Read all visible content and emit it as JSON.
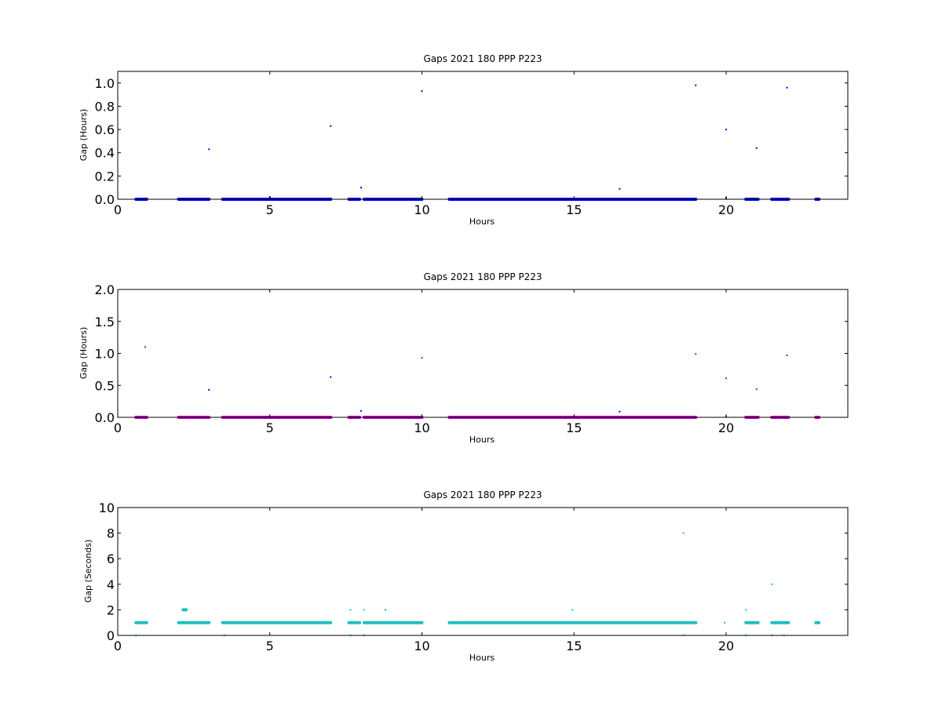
{
  "chart_data": [
    {
      "type": "scatter",
      "title": "Gaps 2021 180 PPP  P223",
      "xlabel": "Hours",
      "ylabel": "Gap (Hours)",
      "xlim": [
        0,
        24
      ],
      "ylim": [
        0,
        1.1
      ],
      "xticks": [
        "0",
        "5",
        "10",
        "15",
        "20"
      ],
      "yticks": [
        "0.0",
        "0.2",
        "0.4",
        "0.6",
        "0.8",
        "1.0"
      ],
      "grid": false,
      "series": [
        {
          "color": "#0000ff",
          "segments": [
            [
              0.6,
              0.95,
              0.0
            ],
            [
              2.0,
              3.0,
              0.0
            ],
            [
              3.45,
              7.0,
              0.0
            ],
            [
              7.6,
              7.95,
              0.0
            ],
            [
              8.1,
              10.0,
              0.0
            ],
            [
              10.9,
              19.0,
              0.0
            ],
            [
              20.65,
              21.05,
              0.0
            ],
            [
              21.5,
              22.05,
              0.0
            ],
            [
              22.95,
              23.05,
              0.0
            ]
          ],
          "points": [
            [
              3.0,
              0.43
            ],
            [
              5.0,
              0.02
            ],
            [
              7.0,
              0.63
            ],
            [
              8.0,
              0.1
            ],
            [
              10.0,
              0.93
            ],
            [
              16.5,
              0.09
            ],
            [
              19.0,
              0.98
            ],
            [
              20.0,
              0.6
            ],
            [
              20.0,
              0.01
            ],
            [
              21.0,
              0.44
            ],
            [
              22.0,
              0.96
            ]
          ]
        }
      ]
    },
    {
      "type": "scatter",
      "title": "Gaps 2021 180 PPP  P223",
      "xlabel": "Hours",
      "ylabel": "Gap (Hours)",
      "xlim": [
        0,
        24
      ],
      "ylim": [
        0,
        2.0
      ],
      "xticks": [
        "0",
        "5",
        "10",
        "15",
        "20"
      ],
      "yticks": [
        "0.0",
        "0.5",
        "1.0",
        "1.5",
        "2.0"
      ],
      "grid": false,
      "series": [
        {
          "color": "#0000ff",
          "segments": [],
          "points": [
            [
              3.0,
              0.43
            ],
            [
              7.0,
              0.63
            ],
            [
              8.0,
              0.1
            ],
            [
              16.5,
              0.09
            ]
          ]
        },
        {
          "color": "#bf00bf",
          "segments": [
            [
              0.6,
              0.95,
              0.0
            ],
            [
              2.0,
              3.0,
              0.0
            ],
            [
              3.45,
              7.0,
              0.0
            ],
            [
              7.6,
              7.95,
              0.0
            ],
            [
              8.1,
              10.0,
              0.0
            ],
            [
              10.9,
              19.0,
              0.0
            ],
            [
              20.65,
              21.05,
              0.0
            ],
            [
              21.5,
              22.05,
              0.0
            ],
            [
              22.95,
              23.05,
              0.0
            ]
          ],
          "points": [
            [
              0.9,
              1.1
            ],
            [
              10.0,
              0.93
            ],
            [
              19.0,
              0.99
            ],
            [
              20.0,
              0.61
            ],
            [
              21.0,
              0.44
            ],
            [
              22.0,
              0.97
            ],
            [
              20.0,
              0.01
            ]
          ]
        }
      ]
    },
    {
      "type": "scatter",
      "title": "Gaps 2021 180 PPP  P223",
      "xlabel": "Hours",
      "ylabel": "Gap (Seconds)",
      "xlim": [
        0,
        24
      ],
      "ylim": [
        0,
        10
      ],
      "xticks": [
        "0",
        "5",
        "10",
        "15",
        "20"
      ],
      "yticks": [
        "0",
        "2",
        "4",
        "6",
        "8",
        "10"
      ],
      "grid": false,
      "series": [
        {
          "color": "#1fbfbf",
          "segments": [
            [
              0.6,
              0.95,
              1.0
            ],
            [
              2.0,
              3.0,
              1.0
            ],
            [
              2.15,
              2.25,
              2.0
            ],
            [
              3.45,
              7.0,
              1.0
            ],
            [
              7.6,
              7.95,
              1.0
            ],
            [
              8.1,
              10.0,
              1.0
            ],
            [
              10.9,
              19.0,
              1.0
            ],
            [
              20.65,
              21.05,
              1.0
            ],
            [
              21.5,
              22.05,
              1.0
            ],
            [
              22.95,
              23.05,
              1.0
            ]
          ],
          "points": [
            [
              0.6,
              0.0
            ],
            [
              3.5,
              0.0
            ],
            [
              7.65,
              2.0
            ],
            [
              7.65,
              0.0
            ],
            [
              8.1,
              2.0
            ],
            [
              8.1,
              0.0
            ],
            [
              8.8,
              2.0
            ],
            [
              14.95,
              2.0
            ],
            [
              18.6,
              8.0
            ],
            [
              18.6,
              0.0
            ],
            [
              19.95,
              1.0
            ],
            [
              20.65,
              2.0
            ],
            [
              20.65,
              0.0
            ],
            [
              21.5,
              4.0
            ],
            [
              21.5,
              0.0
            ],
            [
              21.9,
              0.0
            ]
          ]
        }
      ]
    }
  ]
}
